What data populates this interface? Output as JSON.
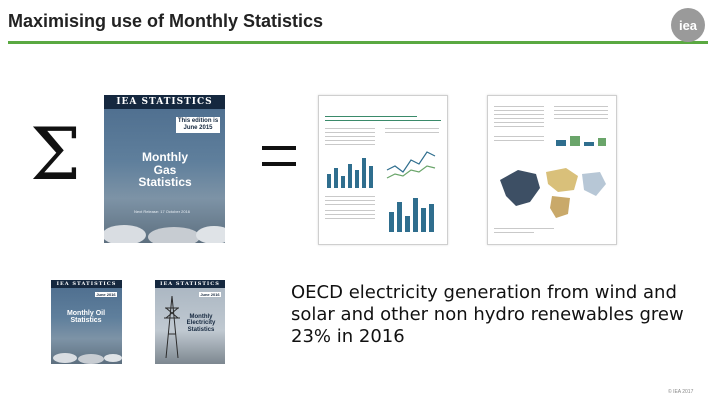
{
  "slide": {
    "title": "Maximising use of Monthly Statistics",
    "logo_text": "iea",
    "caption": "OECD electricity generation from wind and solar and other non hydro renewables grew 23% in 2016",
    "footer": "© IEA 2017"
  },
  "symbols": {
    "sum": "Σ",
    "equals": "="
  },
  "publications": {
    "gas": {
      "header": "IEA STATISTICS",
      "issue": "This edition is June 2015",
      "title": "Monthly Gas Statistics",
      "release": "Next Release: 17 October 2016"
    },
    "oil": {
      "header": "IEA STATISTICS",
      "issue": "June 2016",
      "title": "Monthly Oil Statistics"
    },
    "electricity": {
      "header": "IEA STATISTICS",
      "issue": "June 2016",
      "title": "Monthly Electricity Statistics"
    }
  },
  "colors": {
    "accent_rule": "#5aa941",
    "cover_header": "#15283f",
    "logo_bg": "#9a9a9a"
  }
}
